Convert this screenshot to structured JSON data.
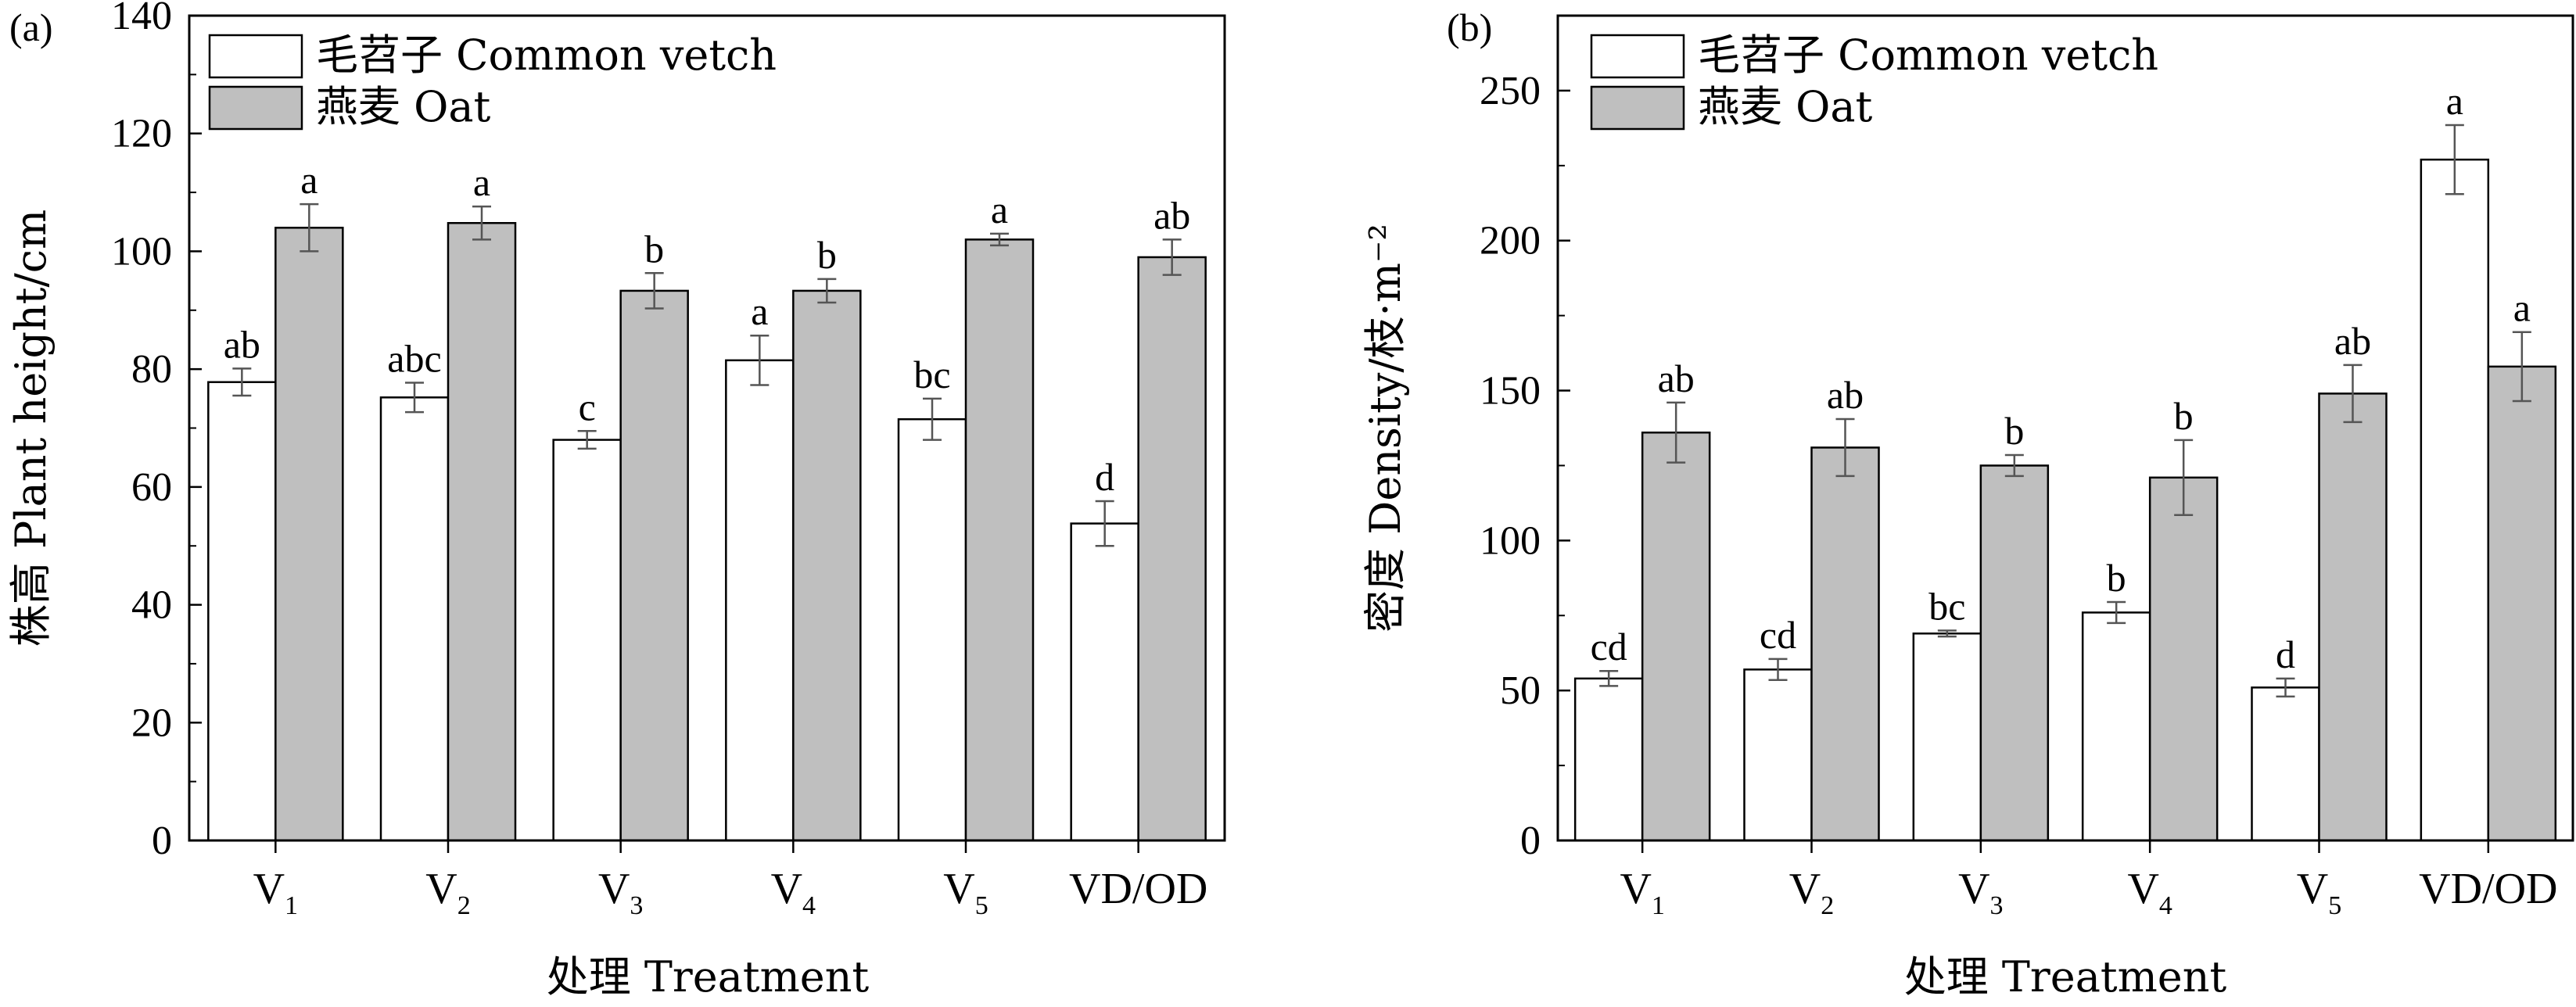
{
  "chart_data": [
    {
      "panel_label": "(a)",
      "type": "bar",
      "ylabel": "株高 Plant height/cm",
      "xlabel": "处理 Treatment",
      "ylim": [
        0,
        140
      ],
      "yticks": [
        0,
        20,
        40,
        60,
        80,
        100,
        120,
        140
      ],
      "categories": [
        {
          "base": "V",
          "sub": "1"
        },
        {
          "base": "V",
          "sub": "2"
        },
        {
          "base": "V",
          "sub": "3"
        },
        {
          "base": "V",
          "sub": "4"
        },
        {
          "base": "V",
          "sub": "5"
        },
        {
          "base": "VD/OD",
          "sub": ""
        }
      ],
      "legend_position": "top-left",
      "series": [
        {
          "name": "毛苕子 Common vetch",
          "color": "#ffffff",
          "values": [
            77.8,
            75.2,
            68.0,
            81.5,
            71.5,
            53.8
          ],
          "errors": [
            2.3,
            2.5,
            1.5,
            4.2,
            3.5,
            3.8
          ],
          "letters": [
            "ab",
            "abc",
            "c",
            "a",
            "bc",
            "d"
          ]
        },
        {
          "name": "燕麦 Oat",
          "color": "#bfbfbf",
          "values": [
            104.0,
            104.8,
            93.3,
            93.3,
            102.0,
            99.0
          ],
          "errors": [
            4.0,
            2.8,
            3.0,
            2.0,
            1.0,
            3.0
          ],
          "letters": [
            "a",
            "a",
            "b",
            "b",
            "a",
            "ab"
          ]
        }
      ]
    },
    {
      "panel_label": "(b)",
      "type": "bar",
      "ylabel": "密度 Density/枝·m⁻²",
      "xlabel": "处理 Treatment",
      "ylim": [
        0,
        275
      ],
      "yticks": [
        0,
        50,
        100,
        150,
        200,
        250
      ],
      "categories": [
        {
          "base": "V",
          "sub": "1"
        },
        {
          "base": "V",
          "sub": "2"
        },
        {
          "base": "V",
          "sub": "3"
        },
        {
          "base": "V",
          "sub": "4"
        },
        {
          "base": "V",
          "sub": "5"
        },
        {
          "base": "VD/OD",
          "sub": ""
        }
      ],
      "legend_position": "top-left",
      "series": [
        {
          "name": "毛苕子 Common vetch",
          "color": "#ffffff",
          "values": [
            54,
            57,
            69,
            76,
            51,
            227
          ],
          "errors": [
            2.5,
            3.5,
            1.0,
            3.5,
            3.0,
            11.5
          ],
          "letters": [
            "cd",
            "cd",
            "bc",
            "b",
            "d",
            "a"
          ]
        },
        {
          "name": "燕麦 Oat",
          "color": "#bfbfbf",
          "values": [
            136,
            131,
            125,
            121,
            149,
            158
          ],
          "errors": [
            10,
            9.5,
            3.5,
            12.5,
            9.5,
            11.5
          ],
          "letters": [
            "ab",
            "ab",
            "b",
            "b",
            "ab",
            "a"
          ]
        }
      ]
    }
  ]
}
